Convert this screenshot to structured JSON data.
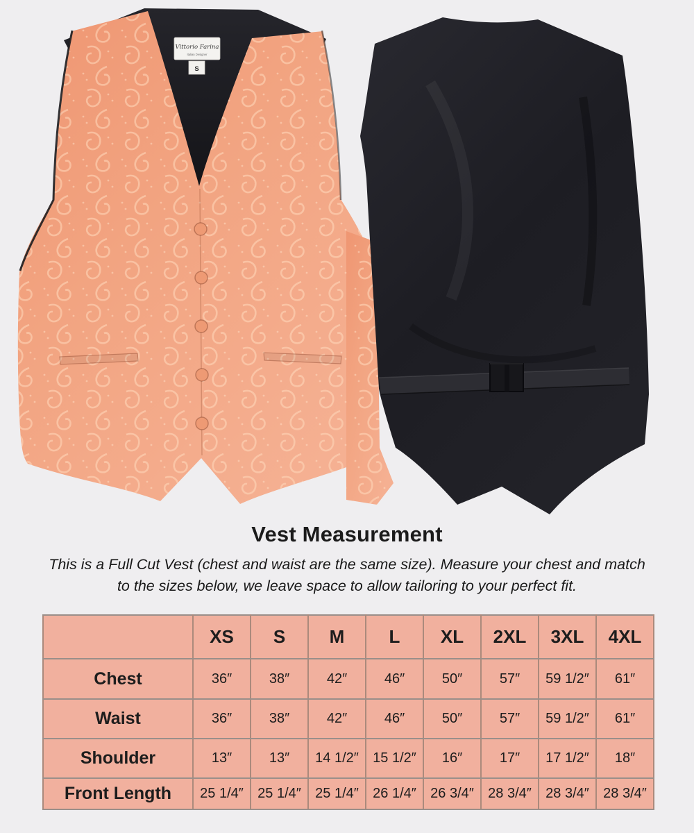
{
  "hero": {
    "front_vest": {
      "description": "coral paisley full-cut vest, front view",
      "brand": "Vittorio Farina",
      "sub_brand": "Italian Designer",
      "size_tag": "S",
      "fabric_color": "#f09a76",
      "lining_color": "#1e1e24"
    },
    "back_vest": {
      "description": "black satin vest back with adjustable strap",
      "fabric_color": "#202026"
    }
  },
  "section": {
    "title": "Vest Measurement",
    "description": "This is a Full Cut Vest (chest and waist are the same size). Measure your chest and match to the sizes below, we leave space to allow tailoring to your perfect fit."
  },
  "size_table": {
    "cell_bg": "#f1b09e",
    "border_color": "#ab8a7c",
    "outer_border_color": "#8e8c8b",
    "columns": [
      "XS",
      "S",
      "M",
      "L",
      "XL",
      "2XL",
      "3XL",
      "4XL"
    ],
    "rows": [
      {
        "label": "Chest",
        "values": [
          "36″",
          "38″",
          "42″",
          "46″",
          "50″",
          "57″",
          "59 1/2″",
          "61″"
        ]
      },
      {
        "label": "Waist",
        "values": [
          "36″",
          "38″",
          "42″",
          "46″",
          "50″",
          "57″",
          "59 1/2″",
          "61″"
        ]
      },
      {
        "label": "Shoulder",
        "values": [
          "13″",
          "13″",
          "14 1/2″",
          "15 1/2″",
          "16″",
          "17″",
          "17 1/2″",
          "18″"
        ]
      },
      {
        "label": "Front Length",
        "values": [
          "25 1/4″",
          "25 1/4″",
          "25 1/4″",
          "26 1/4″",
          "26 3/4″",
          "28 3/4″",
          "28 3/4″",
          "28 3/4″"
        ]
      }
    ]
  }
}
